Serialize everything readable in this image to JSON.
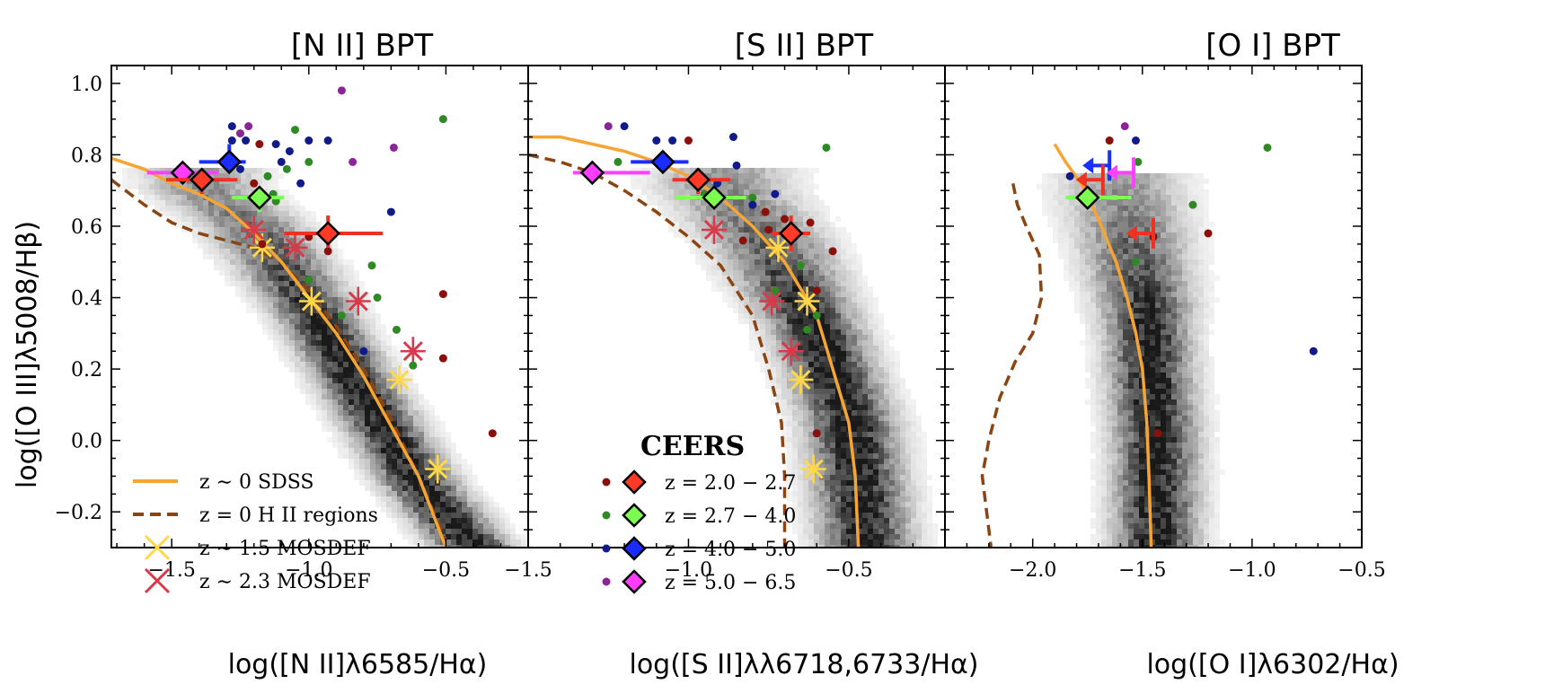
{
  "chart_data": [
    {
      "type": "scatter",
      "title": "[N II] BPT",
      "xlabel": "log([N II]λ6585/Hα)",
      "ylabel": "log([O III]λ5008/Hβ)",
      "xlim": [
        -1.72,
        -0.2
      ],
      "ylim": [
        -0.3,
        1.05
      ],
      "xticks": [
        -1.5,
        -1.0,
        -0.5
      ],
      "xtick_labels": [
        "−1.5",
        "−1.0",
        "−0.5"
      ],
      "yticks": [
        -0.2,
        0.0,
        0.2,
        0.4,
        0.6,
        0.8,
        1.0
      ],
      "ytick_labels": [
        "−0.2",
        "0.0",
        "0.2",
        "0.4",
        "0.6",
        "0.8",
        "1.0"
      ],
      "density_ridge": [
        [
          -1.4,
          0.72
        ],
        [
          -1.2,
          0.6
        ],
        [
          -1.0,
          0.38
        ],
        [
          -0.8,
          0.12
        ],
        [
          -0.6,
          -0.12
        ],
        [
          -0.4,
          -0.3
        ]
      ],
      "sdss_curve": {
        "x": [
          -1.72,
          -1.6,
          -1.5,
          -1.4,
          -1.3,
          -1.2,
          -1.1,
          -1.0,
          -0.9,
          -0.8,
          -0.7,
          -0.6,
          -0.5
        ],
        "y": [
          0.79,
          0.76,
          0.72,
          0.69,
          0.65,
          0.58,
          0.5,
          0.4,
          0.3,
          0.18,
          0.04,
          -0.1,
          -0.3
        ]
      },
      "hii_curve": {
        "x": [
          -1.72,
          -1.6,
          -1.5,
          -1.4,
          -1.3,
          -1.2,
          -1.1,
          -1.0,
          -0.9,
          -0.8,
          -0.7,
          -0.6,
          -0.5
        ],
        "y": [
          0.73,
          0.66,
          0.61,
          0.58,
          0.56,
          0.54,
          0.5,
          0.42,
          0.32,
          0.2,
          0.06,
          -0.1,
          -0.28
        ]
      },
      "mosdef_15": [
        {
          "x": -1.17,
          "y": 0.54
        },
        {
          "x": -0.99,
          "y": 0.39
        },
        {
          "x": -0.67,
          "y": 0.17
        },
        {
          "x": -0.53,
          "y": -0.08
        }
      ],
      "mosdef_23": [
        {
          "x": -1.2,
          "y": 0.59
        },
        {
          "x": -1.05,
          "y": 0.54
        },
        {
          "x": -0.82,
          "y": 0.39
        },
        {
          "x": -0.62,
          "y": 0.25
        }
      ],
      "ceers_points": [
        {
          "x": -1.28,
          "y": 0.88,
          "bin": "z4"
        },
        {
          "x": -1.25,
          "y": 0.86,
          "bin": "z5"
        },
        {
          "x": -1.23,
          "y": 0.84,
          "bin": "z4"
        },
        {
          "x": -1.18,
          "y": 0.83,
          "bin": "z2"
        },
        {
          "x": -1.28,
          "y": 0.84,
          "bin": "z4"
        },
        {
          "x": -1.22,
          "y": 0.88,
          "bin": "z5"
        },
        {
          "x": -1.05,
          "y": 0.87,
          "bin": "z3"
        },
        {
          "x": -1.12,
          "y": 0.83,
          "bin": "z4"
        },
        {
          "x": -1.07,
          "y": 0.81,
          "bin": "z4"
        },
        {
          "x": -1.0,
          "y": 0.84,
          "bin": "z4"
        },
        {
          "x": -0.93,
          "y": 0.84,
          "bin": "z4"
        },
        {
          "x": -1.1,
          "y": 0.78,
          "bin": "z4"
        },
        {
          "x": -1.0,
          "y": 0.78,
          "bin": "z3"
        },
        {
          "x": -1.08,
          "y": 0.76,
          "bin": "z3"
        },
        {
          "x": -1.15,
          "y": 0.74,
          "bin": "z3"
        },
        {
          "x": -1.03,
          "y": 0.72,
          "bin": "z4"
        },
        {
          "x": -0.88,
          "y": 0.98,
          "bin": "z5"
        },
        {
          "x": -0.84,
          "y": 0.78,
          "bin": "z5"
        },
        {
          "x": -0.69,
          "y": 0.82,
          "bin": "z5"
        },
        {
          "x": -0.51,
          "y": 0.9,
          "bin": "z3"
        },
        {
          "x": -1.25,
          "y": 0.76,
          "bin": "z4"
        },
        {
          "x": -1.13,
          "y": 0.69,
          "bin": "z3"
        },
        {
          "x": -1.2,
          "y": 0.72,
          "bin": "z2"
        },
        {
          "x": -1.12,
          "y": 0.67,
          "bin": "z3"
        },
        {
          "x": -0.7,
          "y": 0.64,
          "bin": "z4"
        },
        {
          "x": -1.0,
          "y": 0.57,
          "bin": "z2"
        },
        {
          "x": -1.17,
          "y": 0.55,
          "bin": "z2"
        },
        {
          "x": -0.93,
          "y": 0.53,
          "bin": "z2"
        },
        {
          "x": -0.77,
          "y": 0.49,
          "bin": "z3"
        },
        {
          "x": -1.0,
          "y": 0.45,
          "bin": "z3"
        },
        {
          "x": -0.75,
          "y": 0.4,
          "bin": "z3"
        },
        {
          "x": -0.88,
          "y": 0.35,
          "bin": "z3"
        },
        {
          "x": -0.68,
          "y": 0.31,
          "bin": "z3"
        },
        {
          "x": -0.8,
          "y": 0.25,
          "bin": "z4"
        },
        {
          "x": -0.62,
          "y": 0.21,
          "bin": "z3"
        },
        {
          "x": -0.51,
          "y": 0.41,
          "bin": "z2"
        },
        {
          "x": -0.51,
          "y": 0.23,
          "bin": "z2"
        },
        {
          "x": -0.33,
          "y": 0.02,
          "bin": "z2"
        }
      ],
      "stacks": [
        {
          "x": -1.46,
          "y": 0.75,
          "bin": "z5",
          "xerr": [
            0.13,
            0.13
          ],
          "yerr": [
            0.03,
            0.03
          ]
        },
        {
          "x": -1.39,
          "y": 0.73,
          "bin": "z2",
          "xerr": [
            0.13,
            0.13
          ],
          "yerr": [
            0.04,
            0.03
          ]
        },
        {
          "x": -1.29,
          "y": 0.78,
          "bin": "z4",
          "xerr": [
            0.11,
            0.06
          ],
          "yerr": [
            0.03,
            0.05
          ]
        },
        {
          "x": -1.18,
          "y": 0.68,
          "bin": "z3",
          "xerr": [
            0.1,
            0.09
          ],
          "yerr": [
            0.04,
            0.03
          ]
        },
        {
          "x": -0.93,
          "y": 0.58,
          "bin": "z2",
          "xerr": [
            0.16,
            0.2
          ],
          "yerr": [
            0.04,
            0.05
          ]
        }
      ],
      "legend": {
        "position": "lower-left",
        "items": [
          "z ∼ 0 SDSS",
          "z = 0 H II regions",
          "z ∼ 1.5 MOSDEF",
          "z ∼ 2.3 MOSDEF"
        ]
      }
    },
    {
      "type": "scatter",
      "title": "[S II] BPT",
      "xlabel": "log([S II]λλ6718,6733/Hα)",
      "ylabel": "",
      "xlim": [
        -1.5,
        -0.2
      ],
      "ylim": [
        -0.3,
        1.05
      ],
      "xticks": [
        -1.5,
        -1.0,
        -0.5
      ],
      "xtick_labels": [
        "−1.5",
        "−1.0",
        "−0.5"
      ],
      "density_ridge": [
        [
          -0.9,
          0.72
        ],
        [
          -0.75,
          0.55
        ],
        [
          -0.6,
          0.3
        ],
        [
          -0.5,
          0.05
        ],
        [
          -0.45,
          -0.3
        ]
      ],
      "sdss_curve": {
        "x": [
          -1.5,
          -1.4,
          -1.3,
          -1.2,
          -1.1,
          -1.0,
          -0.9,
          -0.8,
          -0.7,
          -0.6,
          -0.55,
          -0.5,
          -0.48,
          -0.47
        ],
        "y": [
          0.85,
          0.85,
          0.83,
          0.81,
          0.78,
          0.74,
          0.68,
          0.6,
          0.5,
          0.35,
          0.2,
          0.05,
          -0.1,
          -0.3
        ]
      },
      "hii_curve": {
        "x": [
          -1.5,
          -1.4,
          -1.3,
          -1.2,
          -1.1,
          -1.0,
          -0.9,
          -0.8,
          -0.75,
          -0.71,
          -0.7,
          -0.7
        ],
        "y": [
          0.8,
          0.78,
          0.75,
          0.7,
          0.64,
          0.57,
          0.49,
          0.35,
          0.2,
          0.05,
          -0.1,
          -0.3
        ]
      },
      "mosdef_15": [
        {
          "x": -0.72,
          "y": 0.54
        },
        {
          "x": -0.63,
          "y": 0.39
        },
        {
          "x": -0.65,
          "y": 0.17
        },
        {
          "x": -0.61,
          "y": -0.08
        }
      ],
      "mosdef_23": [
        {
          "x": -0.92,
          "y": 0.59
        },
        {
          "x": -0.74,
          "y": 0.39
        },
        {
          "x": -0.68,
          "y": 0.25
        }
      ],
      "ceers_points": [
        {
          "x": -1.25,
          "y": 0.88,
          "bin": "z5"
        },
        {
          "x": -1.2,
          "y": 0.88,
          "bin": "z4"
        },
        {
          "x": -1.22,
          "y": 0.78,
          "bin": "z3"
        },
        {
          "x": -1.1,
          "y": 0.84,
          "bin": "z4"
        },
        {
          "x": -1.05,
          "y": 0.84,
          "bin": "z4"
        },
        {
          "x": -1.0,
          "y": 0.84,
          "bin": "z2"
        },
        {
          "x": -0.86,
          "y": 0.85,
          "bin": "z4"
        },
        {
          "x": -0.85,
          "y": 0.77,
          "bin": "z4"
        },
        {
          "x": -0.73,
          "y": 0.69,
          "bin": "z4"
        },
        {
          "x": -0.57,
          "y": 0.82,
          "bin": "z3"
        },
        {
          "x": -0.91,
          "y": 0.72,
          "bin": "z4"
        },
        {
          "x": -0.95,
          "y": 0.69,
          "bin": "z3"
        },
        {
          "x": -0.8,
          "y": 0.68,
          "bin": "z3"
        },
        {
          "x": -0.8,
          "y": 0.66,
          "bin": "z4"
        },
        {
          "x": -0.7,
          "y": 0.62,
          "bin": "z2"
        },
        {
          "x": -0.76,
          "y": 0.64,
          "bin": "z2"
        },
        {
          "x": -0.75,
          "y": 0.59,
          "bin": "z2"
        },
        {
          "x": -0.62,
          "y": 0.61,
          "bin": "z2"
        },
        {
          "x": -0.55,
          "y": 0.53,
          "bin": "z2"
        },
        {
          "x": -0.65,
          "y": 0.49,
          "bin": "z3"
        },
        {
          "x": -0.73,
          "y": 0.42,
          "bin": "z3"
        },
        {
          "x": -0.6,
          "y": 0.35,
          "bin": "z3"
        },
        {
          "x": -0.63,
          "y": 0.31,
          "bin": "z3"
        },
        {
          "x": -0.83,
          "y": 0.56,
          "bin": "z2"
        },
        {
          "x": -0.6,
          "y": 0.02,
          "bin": "z2"
        },
        {
          "x": -0.6,
          "y": 0.42,
          "bin": "z2"
        }
      ],
      "stacks": [
        {
          "x": -1.3,
          "y": 0.75,
          "bin": "z5",
          "xerr": [
            0.06,
            0.18
          ],
          "yerr": [
            0.03,
            0.03
          ]
        },
        {
          "x": -1.08,
          "y": 0.78,
          "bin": "z4",
          "xerr": [
            0.1,
            0.08
          ],
          "yerr": [
            0.03,
            0.03
          ]
        },
        {
          "x": -0.97,
          "y": 0.73,
          "bin": "z2",
          "xerr": [
            0.08,
            0.1
          ],
          "yerr": [
            0.04,
            0.03
          ]
        },
        {
          "x": -0.92,
          "y": 0.68,
          "bin": "z3",
          "xerr": [
            0.12,
            0.1
          ],
          "yerr": [
            0.03,
            0.03
          ]
        },
        {
          "x": -0.68,
          "y": 0.58,
          "bin": "z2",
          "xerr": [
            0.06,
            0.06
          ],
          "yerr": [
            0.05,
            0.05
          ]
        }
      ],
      "legend": {
        "position": "lower-left",
        "title": "CEERS",
        "items": [
          "z = 2.0 − 2.7",
          "z = 2.7 − 4.0",
          "z = 4.0 − 5.0",
          "z = 5.0 − 6.5"
        ]
      }
    },
    {
      "type": "scatter",
      "title": "[O I] BPT",
      "xlabel": "log([O I]λ6302/Hα)",
      "ylabel": "",
      "xlim": [
        -2.4,
        -0.5
      ],
      "ylim": [
        -0.3,
        1.05
      ],
      "xticks": [
        -2.0,
        -1.5,
        -1.0,
        -0.5
      ],
      "xtick_labels": [
        "−2.0",
        "−1.5",
        "−1.0",
        "−0.5"
      ],
      "density_ridge": [
        [
          -1.6,
          0.7
        ],
        [
          -1.5,
          0.4
        ],
        [
          -1.45,
          0.0
        ],
        [
          -1.45,
          -0.3
        ]
      ],
      "sdss_curve": {
        "x": [
          -1.9,
          -1.85,
          -1.78,
          -1.7,
          -1.62,
          -1.57,
          -1.53,
          -1.5,
          -1.48,
          -1.47,
          -1.46
        ],
        "y": [
          0.83,
          0.78,
          0.72,
          0.62,
          0.5,
          0.4,
          0.3,
          0.2,
          0.05,
          -0.1,
          -0.3
        ]
      },
      "hii_curve": {
        "x": [
          -2.09,
          -2.07,
          -2.03,
          -1.97,
          -1.96,
          -2.0,
          -2.08,
          -2.15,
          -2.2,
          -2.23,
          -2.21,
          -2.19
        ],
        "y": [
          0.72,
          0.66,
          0.6,
          0.52,
          0.4,
          0.3,
          0.22,
          0.12,
          0.0,
          -0.1,
          -0.2,
          -0.3
        ]
      },
      "ceers_points": [
        {
          "x": -1.83,
          "y": 0.74,
          "bin": "z4"
        },
        {
          "x": -1.65,
          "y": 0.84,
          "bin": "z2"
        },
        {
          "x": -1.58,
          "y": 0.88,
          "bin": "z5"
        },
        {
          "x": -1.53,
          "y": 0.84,
          "bin": "z4"
        },
        {
          "x": -1.52,
          "y": 0.78,
          "bin": "z3"
        },
        {
          "x": -1.45,
          "y": 0.57,
          "bin": "z2"
        },
        {
          "x": -1.53,
          "y": 0.5,
          "bin": "z3"
        },
        {
          "x": -1.27,
          "y": 0.66,
          "bin": "z3"
        },
        {
          "x": -1.2,
          "y": 0.58,
          "bin": "z2"
        },
        {
          "x": -0.93,
          "y": 0.82,
          "bin": "z3"
        },
        {
          "x": -0.72,
          "y": 0.25,
          "bin": "z4"
        },
        {
          "x": -1.43,
          "y": 0.02,
          "bin": "z2"
        }
      ],
      "stacks": [
        {
          "x": -1.75,
          "y": 0.68,
          "bin": "z3",
          "xerr": [
            0.1,
            0.2
          ],
          "yerr": [
            0.02,
            0.02
          ]
        }
      ],
      "upper_limits": [
        {
          "x": -1.65,
          "y": 0.77,
          "bin": "z4"
        },
        {
          "x": -1.68,
          "y": 0.73,
          "bin": "z2"
        },
        {
          "x": -1.54,
          "y": 0.75,
          "bin": "z5"
        },
        {
          "x": -1.45,
          "y": 0.58,
          "bin": "z2"
        }
      ]
    }
  ],
  "bin_colors": {
    "z2": {
      "fill": "#ff3b28",
      "dot": "#8b0f0a",
      "line": "#f03020"
    },
    "z3": {
      "fill": "#7cff50",
      "dot": "#2f8a25",
      "line": "#7dff55"
    },
    "z4": {
      "fill": "#1a2cff",
      "dot": "#101a8a",
      "line": "#1830ff"
    },
    "z5": {
      "fill": "#ff3cff",
      "dot": "#8a2598",
      "line": "#ff40ff"
    }
  },
  "curve_colors": {
    "sdss": "#f5a533",
    "hii": "#8b4513",
    "mosdef15": "#ffd84a",
    "mosdef23": "#d83a4a"
  }
}
